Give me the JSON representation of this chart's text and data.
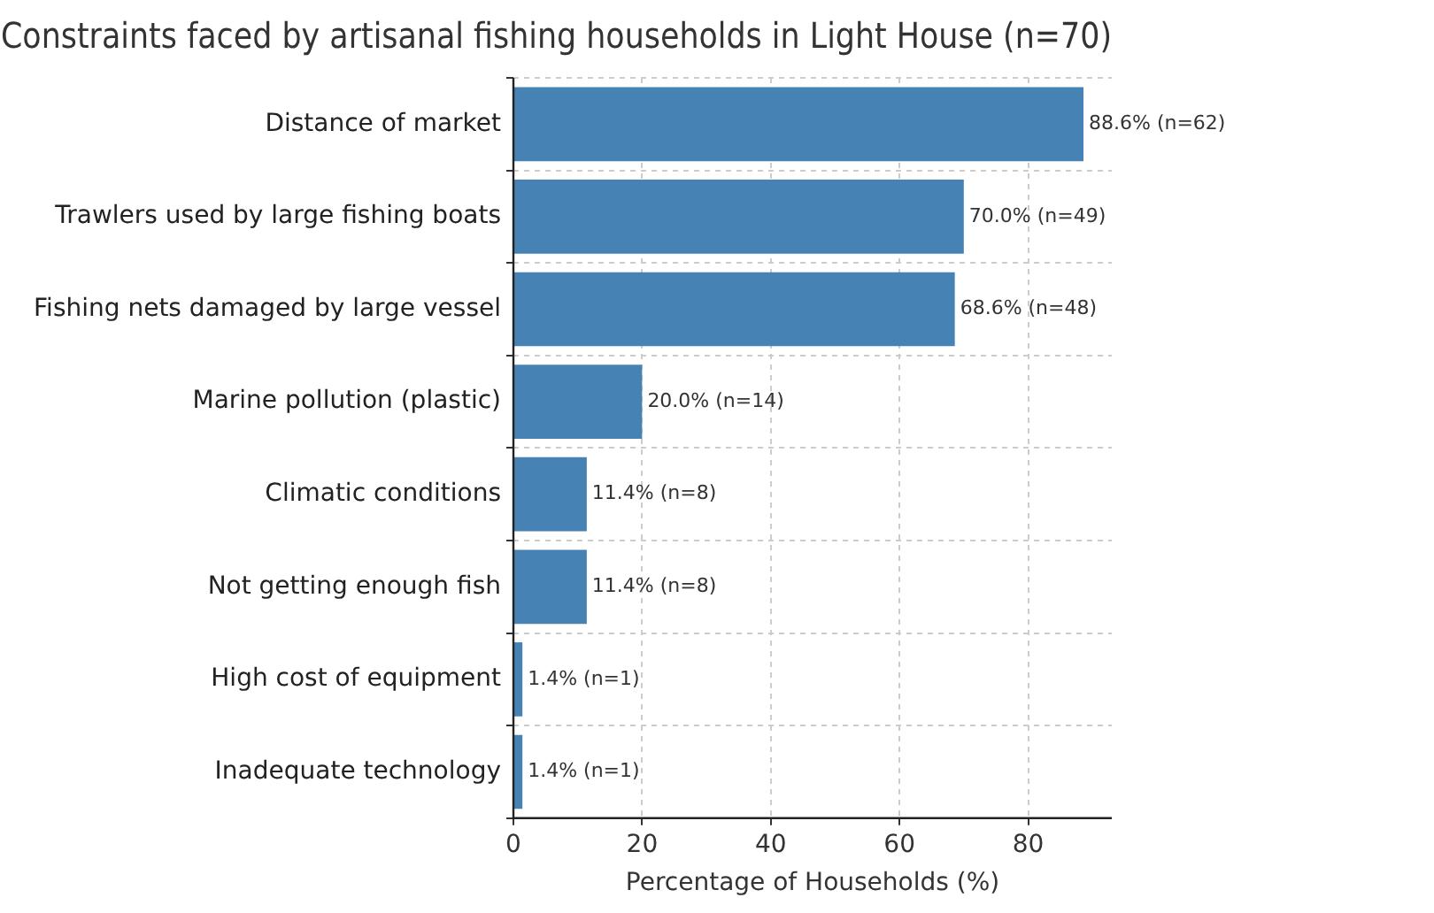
{
  "chart_data": {
    "type": "bar",
    "orientation": "horizontal",
    "title": "Constraints faced by artisanal fishing households in Light House (n=70)",
    "xlabel": "Percentage of Households (%)",
    "categories": [
      "Distance of market",
      "Trawlers used by large fishing boats",
      "Fishing nets damaged by large vessel",
      "Marine pollution (plastic)",
      "Climatic conditions",
      "Not getting enough fish",
      "High cost of equipment",
      "Inadequate technology"
    ],
    "values": [
      88.6,
      70.0,
      68.6,
      20.0,
      11.4,
      11.4,
      1.4,
      1.4
    ],
    "value_labels": [
      "88.6% (n=62)",
      "70.0% (n=49)",
      "68.6% (n=48)",
      "20.0% (n=14)",
      "11.4% (n=8)",
      "11.4% (n=8)",
      "1.4% (n=1)",
      "1.4% (n=1)"
    ],
    "color": "#4682b4",
    "xlim": [
      0,
      93
    ],
    "xticks": [
      0,
      20,
      40,
      60,
      80
    ],
    "grid": true,
    "legend": false
  }
}
